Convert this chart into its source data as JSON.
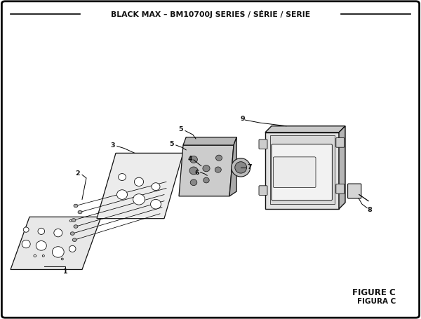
{
  "title": "BLACK MAX – BM10700J SERIES / SÉRIE / SERIE",
  "figure_label": "FIGURE C",
  "figura_label": "FIGURA C",
  "bg_color": "#ffffff",
  "line_color": "#000000",
  "part_outline": "#111111",
  "figsize": [
    6.0,
    4.55
  ],
  "dpi": 100
}
